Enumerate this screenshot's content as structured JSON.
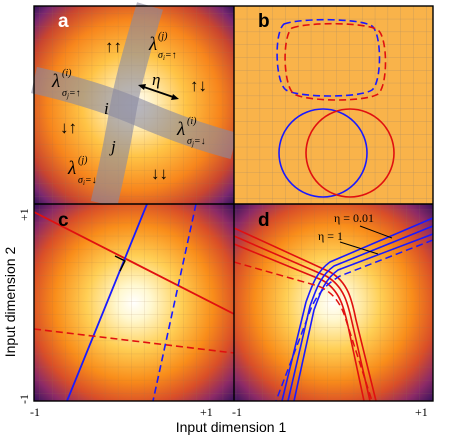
{
  "panels": {
    "a": {
      "label": "a",
      "quadrant_arrows": {
        "top": "↑↑",
        "right": "↑↓",
        "left": "↓↑",
        "bottom": "↓↓"
      },
      "units": {
        "i": "i",
        "j": "j"
      },
      "eta": "η",
      "lambdas": [
        {
          "base": "λ",
          "sup": "(j)",
          "sub": "σ",
          "sub_index": "i",
          "sub_tail": "=↑"
        },
        {
          "base": "λ",
          "sup": "(i)",
          "sub": "σ",
          "sub_index": "j",
          "sub_tail": "=↑"
        },
        {
          "base": "λ",
          "sup": "(i)",
          "sub": "σ",
          "sub_index": "j",
          "sub_tail": "=↓"
        },
        {
          "base": "λ",
          "sup": "(j)",
          "sub": "σ",
          "sub_index": "i",
          "sub_tail": "=↓"
        }
      ]
    },
    "b": {
      "label": "b"
    },
    "c": {
      "label": "c"
    },
    "d": {
      "label": "d",
      "annotations": {
        "eta_small": "η = 0.01",
        "eta_one": "η = 1"
      }
    }
  },
  "axes": {
    "xlabel": "Input dimension 1",
    "ylabel": "Input dimension 2",
    "x_ticks": [
      "-1",
      "+1",
      "-1",
      "+1"
    ],
    "y_ticks": [
      "+1",
      "-1"
    ]
  },
  "colors": {
    "blue": "#1a1aff",
    "red": "#e01010",
    "orange_bg": "#f9b34a",
    "panel_border": "#000000"
  }
}
